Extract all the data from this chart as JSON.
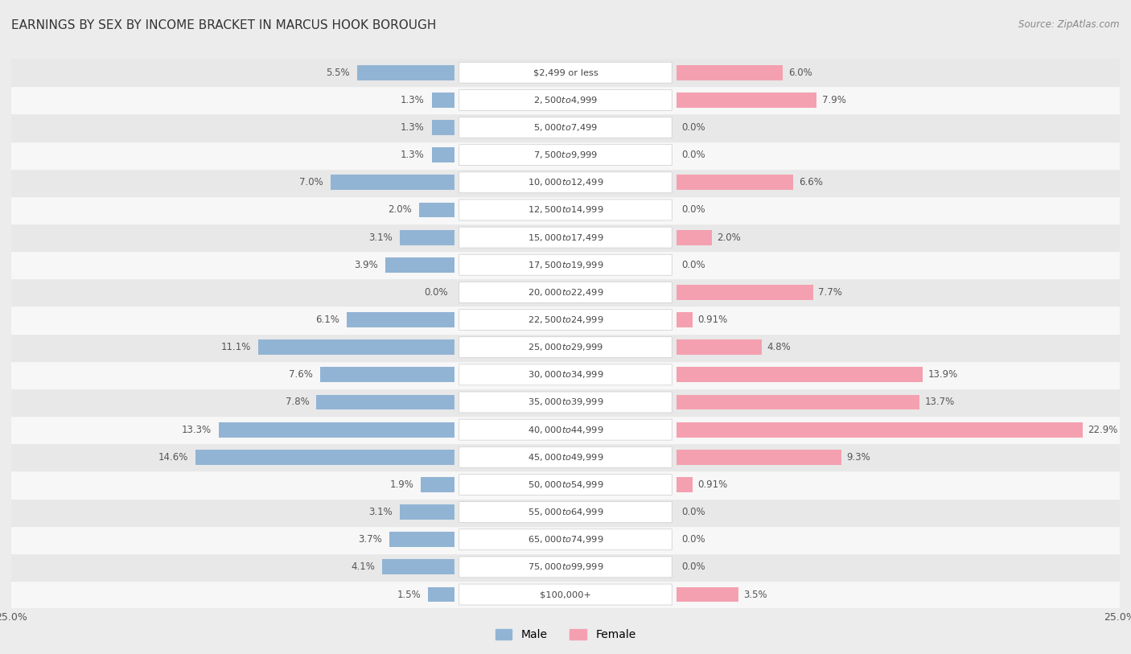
{
  "title": "EARNINGS BY SEX BY INCOME BRACKET IN MARCUS HOOK BOROUGH",
  "source": "Source: ZipAtlas.com",
  "categories": [
    "$2,499 or less",
    "$2,500 to $4,999",
    "$5,000 to $7,499",
    "$7,500 to $9,999",
    "$10,000 to $12,499",
    "$12,500 to $14,999",
    "$15,000 to $17,499",
    "$17,500 to $19,999",
    "$20,000 to $22,499",
    "$22,500 to $24,999",
    "$25,000 to $29,999",
    "$30,000 to $34,999",
    "$35,000 to $39,999",
    "$40,000 to $44,999",
    "$45,000 to $49,999",
    "$50,000 to $54,999",
    "$55,000 to $64,999",
    "$65,000 to $74,999",
    "$75,000 to $99,999",
    "$100,000+"
  ],
  "male": [
    5.5,
    1.3,
    1.3,
    1.3,
    7.0,
    2.0,
    3.1,
    3.9,
    0.0,
    6.1,
    11.1,
    7.6,
    7.8,
    13.3,
    14.6,
    1.9,
    3.1,
    3.7,
    4.1,
    1.5
  ],
  "female": [
    6.0,
    7.9,
    0.0,
    0.0,
    6.6,
    0.0,
    2.0,
    0.0,
    7.7,
    0.91,
    4.8,
    13.9,
    13.7,
    22.9,
    9.3,
    0.91,
    0.0,
    0.0,
    0.0,
    3.5
  ],
  "male_color": "#92b4d4",
  "female_color": "#f4a0b0",
  "label_color": "#555555",
  "bg_color": "#ececec",
  "row_color_even": "#f7f7f7",
  "row_color_odd": "#e8e8e8",
  "axis_limit": 25.0,
  "bar_height": 0.55,
  "legend_male": "Male",
  "legend_female": "Female",
  "center_label_color": "#444444",
  "value_label_color": "#555555"
}
